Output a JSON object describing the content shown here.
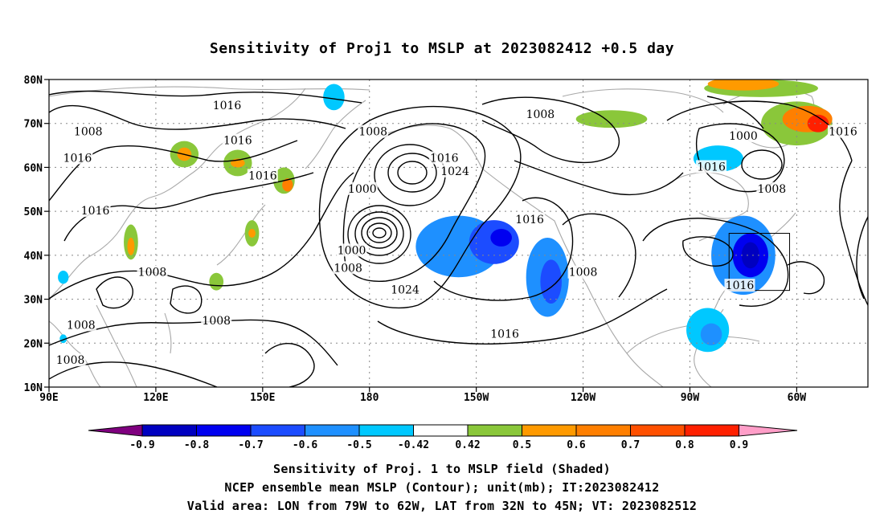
{
  "title": "Sensitivity of Proj1 to MSLP at 2023082412 +0.5 day",
  "map": {
    "lon_range": [
      90,
      320
    ],
    "lat_range": [
      10,
      80
    ],
    "y_ticks": [
      "80N",
      "70N",
      "60N",
      "50N",
      "40N",
      "30N",
      "20N",
      "10N"
    ],
    "x_ticks": [
      "90E",
      "120E",
      "150E",
      "180",
      "150W",
      "120W",
      "90W",
      "60W"
    ],
    "valid_area": {
      "lon": [
        281,
        298
      ],
      "lat": [
        32,
        45
      ]
    }
  },
  "shading": {
    "colors": {
      "n09": "#7f007f",
      "n08": "#0000c0",
      "n07": "#0000f0",
      "n06": "#1c4cff",
      "n05": "#1e90ff",
      "n042": "#00c8ff",
      "p042": "#8ac73a",
      "p05": "#ff9a00",
      "p06": "#ff7f00",
      "p07": "#ff5000",
      "p08": "#ff2000",
      "p09": "#ff9ec8"
    },
    "blobs": [
      {
        "level": "n05",
        "lon": 205,
        "lat": 42,
        "rx": 12,
        "ry": 7
      },
      {
        "level": "n06",
        "lon": 215,
        "lat": 43,
        "rx": 7,
        "ry": 5
      },
      {
        "level": "n07",
        "lon": 217,
        "lat": 44,
        "rx": 3,
        "ry": 2
      },
      {
        "level": "n05",
        "lon": 230,
        "lat": 35,
        "rx": 6,
        "ry": 9
      },
      {
        "level": "n06",
        "lon": 231,
        "lat": 34,
        "rx": 3,
        "ry": 5
      },
      {
        "level": "n05",
        "lon": 285,
        "lat": 40,
        "rx": 9,
        "ry": 9
      },
      {
        "level": "n07",
        "lon": 287,
        "lat": 40,
        "rx": 5,
        "ry": 5
      },
      {
        "level": "n08",
        "lon": 287,
        "lat": 40,
        "rx": 2.5,
        "ry": 3
      },
      {
        "level": "n042",
        "lon": 275,
        "lat": 23,
        "rx": 6,
        "ry": 5
      },
      {
        "level": "n05",
        "lon": 276,
        "lat": 22,
        "rx": 3,
        "ry": 2.5
      },
      {
        "level": "n042",
        "lon": 278,
        "lat": 62,
        "rx": 7,
        "ry": 3
      },
      {
        "level": "n042",
        "lon": 170,
        "lat": 76,
        "rx": 3,
        "ry": 3
      },
      {
        "level": "n042",
        "lon": 94,
        "lat": 35,
        "rx": 1.5,
        "ry": 1.5
      },
      {
        "level": "n042",
        "lon": 94,
        "lat": 21,
        "rx": 1,
        "ry": 1
      },
      {
        "level": "p042",
        "lon": 128,
        "lat": 63,
        "rx": 4,
        "ry": 3
      },
      {
        "level": "p05",
        "lon": 128,
        "lat": 63,
        "rx": 2,
        "ry": 1.5
      },
      {
        "level": "p042",
        "lon": 143,
        "lat": 61,
        "rx": 4,
        "ry": 3
      },
      {
        "level": "p05",
        "lon": 143,
        "lat": 61,
        "rx": 2,
        "ry": 1
      },
      {
        "level": "p042",
        "lon": 156,
        "lat": 57,
        "rx": 3,
        "ry": 3
      },
      {
        "level": "p06",
        "lon": 157,
        "lat": 56,
        "rx": 1.5,
        "ry": 1.5
      },
      {
        "level": "p042",
        "lon": 113,
        "lat": 43,
        "rx": 2,
        "ry": 4
      },
      {
        "level": "p05",
        "lon": 113,
        "lat": 42,
        "rx": 1,
        "ry": 2
      },
      {
        "level": "p042",
        "lon": 137,
        "lat": 34,
        "rx": 2,
        "ry": 2
      },
      {
        "level": "p042",
        "lon": 147,
        "lat": 45,
        "rx": 2,
        "ry": 3
      },
      {
        "level": "p05",
        "lon": 147,
        "lat": 45,
        "rx": 1,
        "ry": 1
      },
      {
        "level": "p042",
        "lon": 248,
        "lat": 71,
        "rx": 10,
        "ry": 2
      },
      {
        "level": "p042",
        "lon": 300,
        "lat": 70,
        "rx": 10,
        "ry": 5
      },
      {
        "level": "p06",
        "lon": 303,
        "lat": 71,
        "rx": 7,
        "ry": 3
      },
      {
        "level": "p08",
        "lon": 306,
        "lat": 70,
        "rx": 3,
        "ry": 2
      },
      {
        "level": "p042",
        "lon": 290,
        "lat": 78,
        "rx": 16,
        "ry": 2
      },
      {
        "level": "p05",
        "lon": 285,
        "lat": 79,
        "rx": 10,
        "ry": 1.5
      }
    ]
  },
  "contours": {
    "labels": [
      {
        "text": "1016",
        "lon": 140,
        "lat": 74
      },
      {
        "text": "1008",
        "lon": 101,
        "lat": 68
      },
      {
        "text": "1016",
        "lon": 143,
        "lat": 66
      },
      {
        "text": "1016",
        "lon": 98,
        "lat": 62
      },
      {
        "text": "1016",
        "lon": 150,
        "lat": 58
      },
      {
        "text": "1016",
        "lon": 103,
        "lat": 50
      },
      {
        "text": "1008",
        "lon": 119,
        "lat": 36
      },
      {
        "text": "1008",
        "lon": 99,
        "lat": 24
      },
      {
        "text": "1008",
        "lon": 96,
        "lat": 16
      },
      {
        "text": "1008",
        "lon": 137,
        "lat": 25
      },
      {
        "text": "1008",
        "lon": 181,
        "lat": 68
      },
      {
        "text": "1000",
        "lon": 178,
        "lat": 55
      },
      {
        "text": "1000",
        "lon": 175,
        "lat": 41
      },
      {
        "text": "1008",
        "lon": 174,
        "lat": 37
      },
      {
        "text": "1016",
        "lon": 201,
        "lat": 62
      },
      {
        "text": "1024",
        "lon": 204,
        "lat": 59
      },
      {
        "text": "1008",
        "lon": 228,
        "lat": 72
      },
      {
        "text": "1016",
        "lon": 225,
        "lat": 48
      },
      {
        "text": "1024",
        "lon": 190,
        "lat": 32
      },
      {
        "text": "1008",
        "lon": 240,
        "lat": 36
      },
      {
        "text": "1016",
        "lon": 218,
        "lat": 22
      },
      {
        "text": "1000",
        "lon": 285,
        "lat": 67
      },
      {
        "text": "1016",
        "lon": 276,
        "lat": 60
      },
      {
        "text": "1008",
        "lon": 293,
        "lat": 55
      },
      {
        "text": "1016",
        "lon": 313,
        "lat": 68
      },
      {
        "text": "1016",
        "lon": 284,
        "lat": 33
      }
    ]
  },
  "colorbar": {
    "ticks": [
      "-0.9",
      "-0.8",
      "-0.7",
      "-0.6",
      "-0.5",
      "-0.42",
      "0.42",
      "0.5",
      "0.6",
      "0.7",
      "0.8",
      "0.9"
    ]
  },
  "captions": [
    "Sensitivity of Proj. 1 to MSLP field (Shaded)",
    "NCEP ensemble mean MSLP (Contour); unit(mb); IT:2023082412",
    "Valid area: LON from 79W to 62W, LAT from 32N to 45N; VT: 2023082512"
  ]
}
